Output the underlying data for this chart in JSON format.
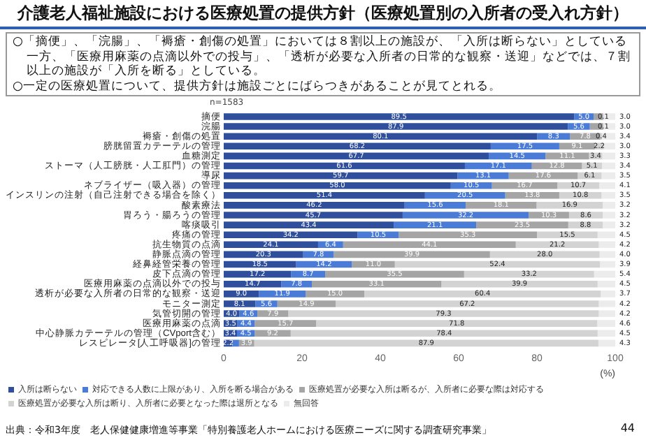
{
  "chart_data": {
    "type": "bar",
    "orientation": "horizontal",
    "stacked": true,
    "title": "介護老人福祉施設における医療処置の提供方針（医療処置別の入所者の受入れ方針）",
    "annotations": [
      "○「摘便」、「浣腸」、「褥瘡・創傷の処置」においては８割以上の施設が、「入所は断らない」としている一方、「医療用麻薬の点滴以外での投与」、「透析が必要な入所者の日常的な観察・送迎」などでは、７割以上の施設が「入所を断る」としている。",
      "○一定の医療処置について、提供方針は施設ごとにばらつきがあることが見てとれる。",
      "n=1583",
      "出典：令和3年度　老人保健健康増進等事業「特別養護老人ホームにおける医療ニーズに関する調査研究事業」",
      "44"
    ],
    "xlabel": "(%)",
    "categories": [
      "摘便",
      "浣腸",
      "褥瘡・創傷の処置",
      "膀胱留置カテーテルの管理",
      "血糖測定",
      "ストーマ（人工膀胱・人工肛門）の管理",
      "導尿",
      "ネブライザー（吸入器）の管理",
      "インスリンの注射（自己注射できる場合を除く）",
      "酸素療法",
      "胃ろう・腸ろうの管理",
      "喀痰吸引",
      "疼痛の管理",
      "抗生物質の点滴",
      "静脈点滴の管理",
      "経鼻経管栄養の管理",
      "皮下点滴の管理",
      "医療用麻薬の点滴以外での投与",
      "透析が必要な入所者の日常的な観察・送迎",
      "モニター測定",
      "気管切開の管理",
      "医療用麻薬の点滴",
      "中心静脈カテーテルの管理（CVport含む）",
      "レスピレータ[人工呼吸器]の管理"
    ],
    "series": [
      {
        "name": "入所は断らない",
        "color": "#2f4f9c",
        "values": [
          89.5,
          87.9,
          80.1,
          68.2,
          67.7,
          61.6,
          59.7,
          58.0,
          51.4,
          46.2,
          45.7,
          43.4,
          34.2,
          24.1,
          20.3,
          18.5,
          17.2,
          14.7,
          9.0,
          8.1,
          4.0,
          3.5,
          3.4,
          2.2
        ],
        "value_labels": [
          "89.5",
          "87.9",
          "80.1",
          "68.2",
          "67.7",
          "61.6",
          "59.7",
          "58.0",
          "51.4",
          "46.2",
          "45.7",
          "43.4",
          "34.2",
          "24.1",
          "20.3",
          "18.5",
          "17.2",
          "14.7",
          "9.0",
          "8.1",
          "4.0",
          "3.5",
          "3.4",
          "2.2"
        ]
      },
      {
        "name": "対応できる人数に上限があり、入所を断る場合がある",
        "color": "#4a7bd6",
        "values": [
          5.0,
          5.6,
          8.3,
          17.5,
          14.5,
          17.1,
          13.1,
          10.5,
          20.5,
          15.6,
          32.2,
          21.1,
          10.5,
          6.4,
          7.8,
          14.2,
          8.7,
          7.8,
          11.9,
          5.6,
          4.6,
          4.4,
          4.5,
          1.7
        ],
        "value_labels": [
          "5.0",
          "5.6",
          "8.3",
          "17.5",
          "14.5",
          "17.1",
          "13.1",
          "10.5",
          "20.5",
          "15.6",
          "32.2",
          "21.1",
          "10.5",
          "6.4",
          "7.8",
          "14.2",
          "8.7",
          "7.8",
          "11.9",
          "5.6",
          "4.6",
          "4.4",
          "4.5",
          null
        ]
      },
      {
        "name": "医療処置が必要な入所は断るが、入所者に必要な際は対応する",
        "color": "#a5a5a5",
        "values": [
          2.4,
          3.4,
          7.8,
          9.1,
          11.1,
          12.8,
          17.6,
          16.7,
          13.8,
          18.1,
          10.3,
          23.5,
          35.3,
          44.1,
          39.9,
          11.0,
          35.5,
          33.1,
          15.0,
          14.9,
          7.9,
          15.7,
          9.2,
          3.9
        ],
        "value_labels": [
          null,
          null,
          "7.8",
          "9.1",
          "11.1",
          "12.8",
          "17.6",
          "16.7",
          "13.8",
          "18.1",
          "10.3",
          "23.5",
          "35.3",
          "44.1",
          "39.9",
          "11.0",
          "35.5",
          "33.1",
          "15.0",
          "14.9",
          "7.9",
          "15.7",
          "9.2",
          "3.9"
        ]
      },
      {
        "name": "医療処置が必要な入所は断り、入所者に必要となった際は退所となる",
        "color": "#d3d3d3",
        "values": [
          0.1,
          0.1,
          0.4,
          2.2,
          3.4,
          5.1,
          6.1,
          10.7,
          10.8,
          16.9,
          8.6,
          8.8,
          15.5,
          21.2,
          28.0,
          52.4,
          33.2,
          39.9,
          60.4,
          67.2,
          79.3,
          71.8,
          78.4,
          87.9
        ],
        "value_labels": [
          "0.1",
          "0.1",
          "0.4",
          "2.2",
          "3.4",
          "5.1",
          "6.1",
          "10.7",
          "10.8",
          "16.9",
          "8.6",
          "8.8",
          "15.5",
          "21.2",
          "28.0",
          "52.4",
          "33.2",
          "39.9",
          "60.4",
          "67.2",
          "79.3",
          "71.8",
          "78.4",
          "87.9"
        ]
      },
      {
        "name": "無回答",
        "color": "#ececec",
        "values": [
          3.0,
          3.0,
          3.4,
          3.0,
          3.3,
          3.4,
          3.5,
          4.1,
          3.5,
          3.2,
          3.2,
          3.2,
          4.5,
          4.2,
          4.0,
          3.9,
          5.4,
          4.5,
          3.7,
          4.2,
          4.2,
          4.6,
          4.5,
          4.3
        ],
        "value_labels": [
          "3.0",
          "3.0",
          "3.4",
          "3.0",
          "3.3",
          "3.4",
          "3.5",
          "4.1",
          "3.5",
          "3.2",
          "3.2",
          "3.2",
          "4.5",
          "4.2",
          "4.0",
          "3.9",
          "5.4",
          "4.5",
          "3.7",
          "4.2",
          "4.2",
          "4.6",
          "4.5",
          "4.3"
        ]
      }
    ],
    "xlim": [
      0,
      100
    ],
    "xticks": [
      0,
      20,
      40,
      60,
      80,
      100
    ],
    "grid": false,
    "legend": "bottom"
  }
}
